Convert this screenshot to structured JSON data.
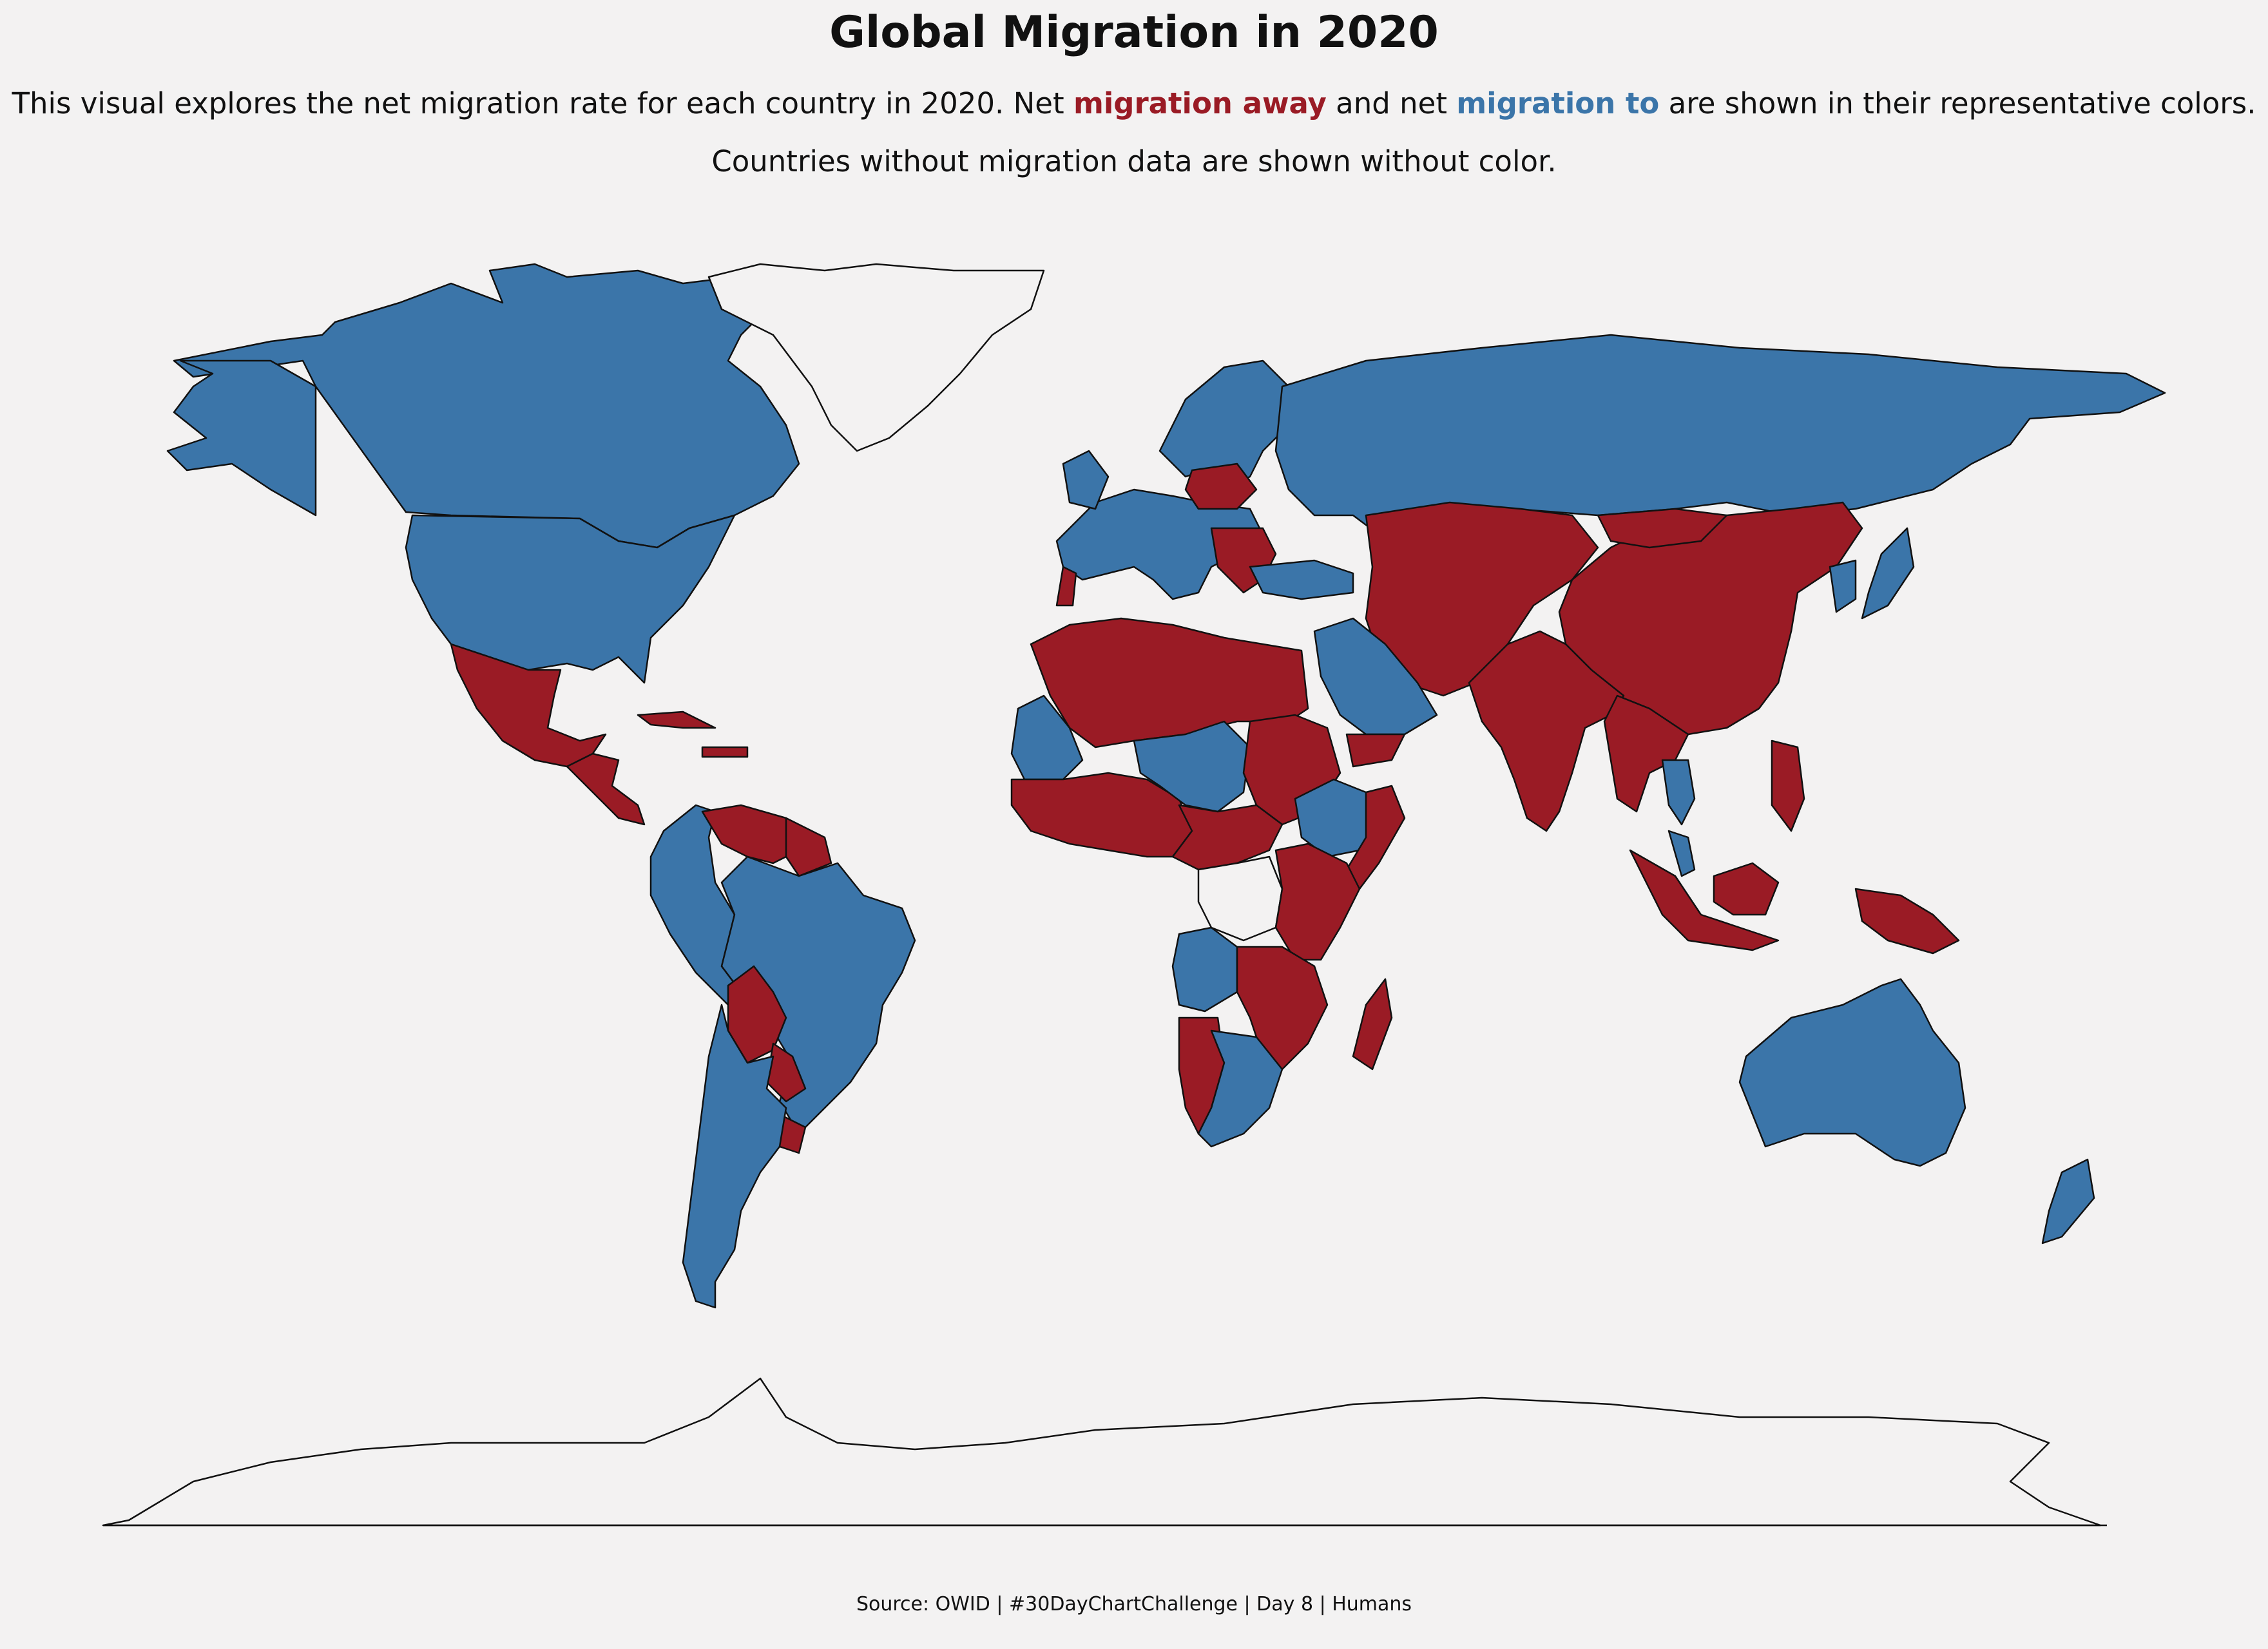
{
  "title": "Global Migration in 2020",
  "subtitle": {
    "line1_prefix": "This visual explores the net migration rate for each country in 2020. Net ",
    "away_phrase": "migration away",
    "middle": " and net ",
    "to_phrase": "migration to",
    "line1_suffix": " are shown in their representative colors.",
    "line2": "Countries without migration data are shown without color."
  },
  "source": "Source: OWID | #30DayChartChallenge | Day 8 | Humans",
  "colors": {
    "migration_away": "#9a1b25",
    "migration_to": "#3b75a9",
    "no_data": "#f3f2f2",
    "background": "#f3f2f2"
  },
  "map_data": {
    "type": "choropleth",
    "year": 2020,
    "metric": "net migration rate",
    "regions": [
      {
        "id": "canada",
        "category": "migration_to"
      },
      {
        "id": "alaska",
        "category": "migration_to"
      },
      {
        "id": "united-states",
        "category": "migration_to"
      },
      {
        "id": "mexico",
        "category": "migration_away"
      },
      {
        "id": "central-america",
        "category": "migration_away"
      },
      {
        "id": "caribbean",
        "category": "migration_away"
      },
      {
        "id": "greenland",
        "category": "no_data"
      },
      {
        "id": "colombia-ecuador-peru",
        "category": "migration_to"
      },
      {
        "id": "venezuela",
        "category": "migration_away"
      },
      {
        "id": "guyana",
        "category": "migration_away"
      },
      {
        "id": "brazil",
        "category": "migration_to"
      },
      {
        "id": "bolivia",
        "category": "migration_away"
      },
      {
        "id": "paraguay",
        "category": "migration_away"
      },
      {
        "id": "uruguay",
        "category": "migration_away"
      },
      {
        "id": "argentina-chile",
        "category": "migration_to"
      },
      {
        "id": "scandinavia",
        "category": "migration_to"
      },
      {
        "id": "western-europe",
        "category": "migration_to"
      },
      {
        "id": "uk",
        "category": "migration_to"
      },
      {
        "id": "portugal",
        "category": "migration_away"
      },
      {
        "id": "poland",
        "category": "migration_away"
      },
      {
        "id": "balkans",
        "category": "migration_away"
      },
      {
        "id": "turkey",
        "category": "migration_to"
      },
      {
        "id": "russia",
        "category": "migration_to"
      },
      {
        "id": "central-asia-iran-afghanistan",
        "category": "migration_away"
      },
      {
        "id": "china",
        "category": "migration_away"
      },
      {
        "id": "mongolia",
        "category": "migration_away"
      },
      {
        "id": "india",
        "category": "migration_away"
      },
      {
        "id": "southeast-asia",
        "category": "migration_away"
      },
      {
        "id": "thailand",
        "category": "migration_to"
      },
      {
        "id": "korea",
        "category": "migration_to"
      },
      {
        "id": "japan",
        "category": "migration_to"
      },
      {
        "id": "philippines",
        "category": "migration_away"
      },
      {
        "id": "indonesia",
        "category": "migration_away"
      },
      {
        "id": "papua-new-guinea",
        "category": "migration_away"
      },
      {
        "id": "malaysia",
        "category": "migration_to"
      },
      {
        "id": "borneo",
        "category": "migration_away"
      },
      {
        "id": "saudi-arabia-gulf",
        "category": "migration_to"
      },
      {
        "id": "yemen",
        "category": "migration_away"
      },
      {
        "id": "north-africa",
        "category": "migration_away"
      },
      {
        "id": "mauritania",
        "category": "migration_to"
      },
      {
        "id": "west-africa",
        "category": "migration_away"
      },
      {
        "id": "niger-chad",
        "category": "migration_to"
      },
      {
        "id": "sudan",
        "category": "migration_away"
      },
      {
        "id": "ethiopia-south-sudan",
        "category": "migration_to"
      },
      {
        "id": "somalia",
        "category": "migration_away"
      },
      {
        "id": "central-africa",
        "category": "migration_away"
      },
      {
        "id": "drc",
        "category": "no_data"
      },
      {
        "id": "east-africa",
        "category": "migration_away"
      },
      {
        "id": "angola",
        "category": "migration_to"
      },
      {
        "id": "zambia-mozambique",
        "category": "migration_away"
      },
      {
        "id": "namibia",
        "category": "migration_away"
      },
      {
        "id": "south-africa-botswana",
        "category": "migration_to"
      },
      {
        "id": "madagascar",
        "category": "migration_away"
      },
      {
        "id": "australia",
        "category": "migration_to"
      },
      {
        "id": "new-zealand",
        "category": "migration_to"
      },
      {
        "id": "antarctica",
        "category": "no_data"
      }
    ]
  }
}
